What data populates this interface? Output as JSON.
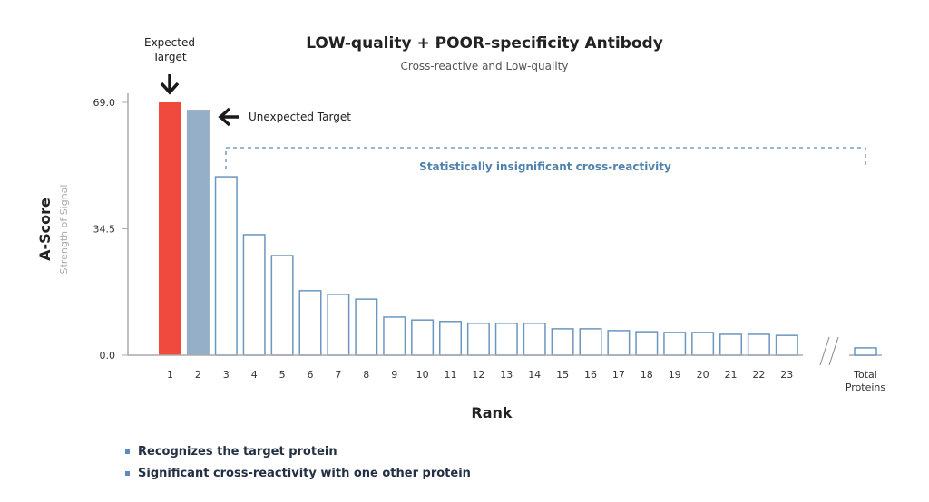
{
  "chart_data": {
    "type": "bar",
    "title": "LOW-quality + POOR-specificity Antibody",
    "subtitle": "Cross-reactive and Low-quality",
    "xlabel": "Rank",
    "ylabel": "A-Score",
    "ylabel_sub": "Strength of Signal",
    "ylim": [
      0,
      69.0
    ],
    "yticks": [
      "0.0",
      "34.5",
      "69.0"
    ],
    "ytick_values": [
      0,
      34.5,
      69.0
    ],
    "grid": false,
    "categories": [
      "1",
      "2",
      "3",
      "4",
      "5",
      "6",
      "7",
      "8",
      "9",
      "10",
      "11",
      "12",
      "13",
      "14",
      "15",
      "16",
      "17",
      "18",
      "19",
      "20",
      "21",
      "22",
      "23"
    ],
    "values": [
      69.0,
      67.0,
      48.7,
      32.9,
      27.2,
      17.6,
      16.6,
      15.3,
      10.4,
      9.6,
      9.2,
      8.7,
      8.7,
      8.7,
      7.2,
      7.2,
      6.7,
      6.4,
      6.2,
      6.2,
      5.7,
      5.7,
      5.4
    ],
    "bar_styles": [
      "expected",
      "unexpected",
      "other",
      "other",
      "other",
      "other",
      "other",
      "other",
      "other",
      "other",
      "other",
      "other",
      "other",
      "other",
      "other",
      "other",
      "other",
      "other",
      "other",
      "other",
      "other",
      "other",
      "other"
    ],
    "total_proteins": {
      "label_line1": "Total",
      "label_line2": "Proteins",
      "value": 2.0
    },
    "colors": {
      "expected": "#f04a3f",
      "unexpected": "#94afc7",
      "outline": "#6b96c0",
      "axis": "#aaaaaa",
      "annotation_blue": "#4f82ad"
    },
    "annotations": {
      "expected_line1": "Expected",
      "expected_line2": "Target",
      "unexpected": "Unexpected Target",
      "insignificant": "Statistically insignificant cross-reactivity"
    }
  },
  "legend": [
    "Recognizes the target protein",
    "Significant cross-reactivity with one other protein"
  ]
}
